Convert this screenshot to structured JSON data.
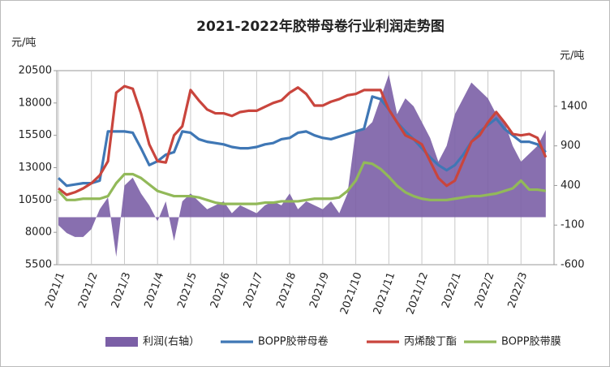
{
  "chart_data": {
    "type": "combo",
    "title": "2021-2022年胶带母卷行业利润走势图",
    "ylabel": "元/吨",
    "y2label": "元/吨",
    "categories": [
      "2021/1",
      null,
      null,
      null,
      "2021/2",
      null,
      null,
      null,
      "2021/3",
      null,
      null,
      null,
      "2021/4",
      null,
      null,
      null,
      "2021/5",
      null,
      null,
      null,
      "2021/6",
      null,
      null,
      null,
      "2021/7",
      null,
      null,
      null,
      "2021/8",
      null,
      null,
      null,
      "2021/9",
      null,
      null,
      null,
      "2021/10",
      null,
      null,
      null,
      "2021/11",
      null,
      null,
      null,
      "2021/12",
      null,
      null,
      null,
      "2022/1",
      null,
      null,
      null,
      "2022/2",
      null,
      null,
      null,
      "2022/3",
      null,
      null,
      null
    ],
    "ylim": [
      5500,
      20500
    ],
    "yticks": [
      5500,
      8000,
      10500,
      13000,
      15500,
      18000,
      20500
    ],
    "y2lim": [
      -600,
      1850
    ],
    "y2ticks": [
      -600,
      -100,
      400,
      900,
      1400
    ],
    "grid": true,
    "legend": "bottom",
    "series": [
      {
        "name": "利润(右轴）",
        "type": "area",
        "axis": "y2",
        "color": "#7b5fa6",
        "values": [
          -100,
          -200,
          -250,
          -250,
          -150,
          100,
          250,
          -500,
          400,
          500,
          300,
          150,
          -50,
          200,
          -300,
          200,
          300,
          200,
          100,
          150,
          200,
          50,
          150,
          100,
          50,
          150,
          200,
          150,
          300,
          100,
          200,
          150,
          100,
          200,
          50,
          300,
          1100,
          1100,
          1200,
          1500,
          1800,
          1300,
          1500,
          1400,
          1200,
          1000,
          700,
          900,
          1300,
          1500,
          1700,
          1600,
          1500,
          1300,
          1200,
          900,
          700,
          800,
          900,
          1100
        ]
      },
      {
        "name": "BOPP胶带母卷",
        "type": "line",
        "color": "#3f77b5",
        "values": [
          12200,
          11600,
          11700,
          11800,
          11800,
          12000,
          15800,
          15800,
          15800,
          15700,
          14500,
          13200,
          13500,
          14000,
          14200,
          15800,
          15700,
          15200,
          15000,
          14900,
          14800,
          14600,
          14500,
          14500,
          14600,
          14800,
          14900,
          15200,
          15300,
          15700,
          15800,
          15500,
          15300,
          15200,
          15400,
          15600,
          15800,
          16000,
          18500,
          18300,
          17500,
          16500,
          15800,
          15200,
          14500,
          13800,
          13200,
          12800,
          13200,
          14000,
          15000,
          15800,
          16300,
          16800,
          16000,
          15500,
          15000,
          15000,
          14800,
          14200
        ]
      },
      {
        "name": "丙烯酸丁酯",
        "type": "line",
        "color": "#c9453d",
        "values": [
          11400,
          10900,
          11100,
          11400,
          11800,
          12400,
          13500,
          18800,
          19300,
          19100,
          17200,
          14800,
          13500,
          13400,
          15500,
          16200,
          19000,
          18200,
          17500,
          17200,
          17200,
          17000,
          17300,
          17400,
          17400,
          17700,
          18000,
          18200,
          18800,
          19200,
          18700,
          17800,
          17800,
          18100,
          18300,
          18600,
          18700,
          19000,
          19000,
          19000,
          17500,
          16500,
          15500,
          15200,
          14800,
          13500,
          12200,
          11600,
          12000,
          13500,
          15000,
          15500,
          16500,
          17300,
          16500,
          15600,
          15500,
          15600,
          15300,
          13800
        ]
      },
      {
        "name": "BOPP胶带膜",
        "type": "line",
        "color": "#92b959",
        "values": [
          11200,
          10500,
          10500,
          10600,
          10600,
          10600,
          10800,
          11800,
          12500,
          12500,
          12200,
          11700,
          11200,
          11000,
          10800,
          10800,
          10800,
          10700,
          10500,
          10300,
          10200,
          10200,
          10200,
          10200,
          10200,
          10300,
          10300,
          10400,
          10400,
          10400,
          10500,
          10600,
          10600,
          10600,
          10700,
          11200,
          12000,
          13400,
          13300,
          12900,
          12300,
          11600,
          11100,
          10800,
          10600,
          10500,
          10500,
          10500,
          10600,
          10700,
          10800,
          10800,
          10900,
          11000,
          11200,
          11400,
          12000,
          11300,
          11300,
          11200
        ]
      }
    ]
  }
}
